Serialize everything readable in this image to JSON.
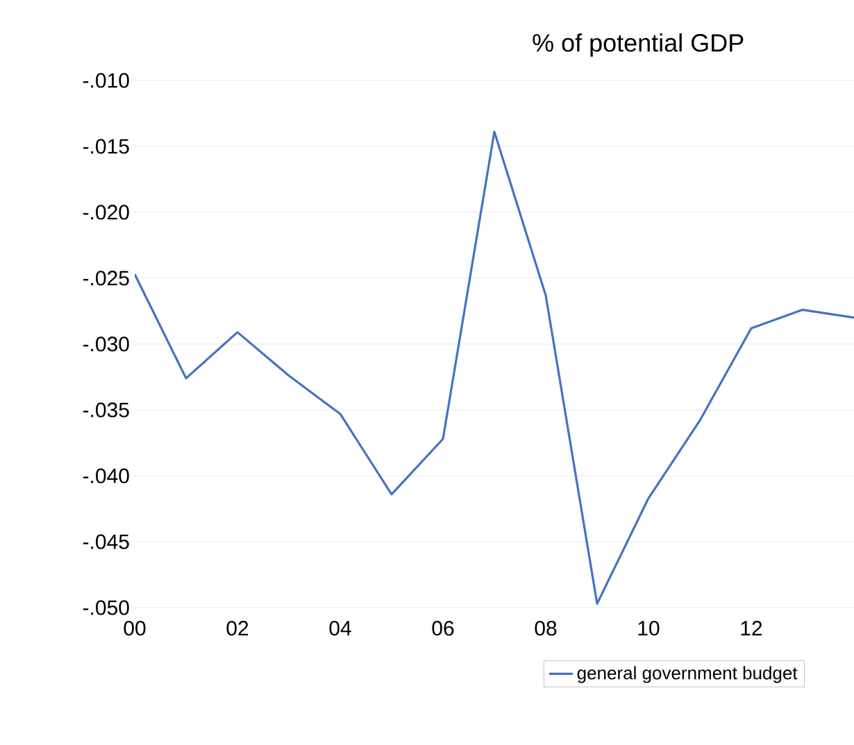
{
  "chart_data": {
    "type": "line",
    "title": "% of potential GDP",
    "x": [
      2000,
      2001,
      2002,
      2003,
      2004,
      2005,
      2006,
      2007,
      2008,
      2009,
      2010,
      2011,
      2012,
      2013,
      2014
    ],
    "series": [
      {
        "name": "general government budget",
        "color": "#4472c4",
        "values": [
          -0.0247,
          -0.0326,
          -0.0291,
          -0.0324,
          -0.0353,
          -0.0414,
          -0.0372,
          -0.0139,
          -0.0263,
          -0.0497,
          -0.0417,
          -0.0358,
          -0.0288,
          -0.0274,
          -0.028
        ]
      }
    ],
    "xlim": [
      2000,
      2014
    ],
    "xticks": [
      {
        "value": 2000,
        "label": "00"
      },
      {
        "value": 2002,
        "label": "02"
      },
      {
        "value": 2004,
        "label": "04"
      },
      {
        "value": 2006,
        "label": "06"
      },
      {
        "value": 2008,
        "label": "08"
      },
      {
        "value": 2010,
        "label": "10"
      },
      {
        "value": 2012,
        "label": "12"
      }
    ],
    "ylim": [
      -0.05,
      -0.01
    ],
    "yticks": [
      {
        "value": -0.05,
        "label": "-.050"
      },
      {
        "value": -0.045,
        "label": "-.045"
      },
      {
        "value": -0.04,
        "label": "-.040"
      },
      {
        "value": -0.035,
        "label": "-.035"
      },
      {
        "value": -0.03,
        "label": "-.030"
      },
      {
        "value": -0.025,
        "label": "-.025"
      },
      {
        "value": -0.02,
        "label": "-.020"
      },
      {
        "value": -0.015,
        "label": "-.015"
      },
      {
        "value": -0.01,
        "label": "-.010"
      }
    ],
    "grid": "y",
    "legend": "bottom",
    "line_style": "solid"
  }
}
